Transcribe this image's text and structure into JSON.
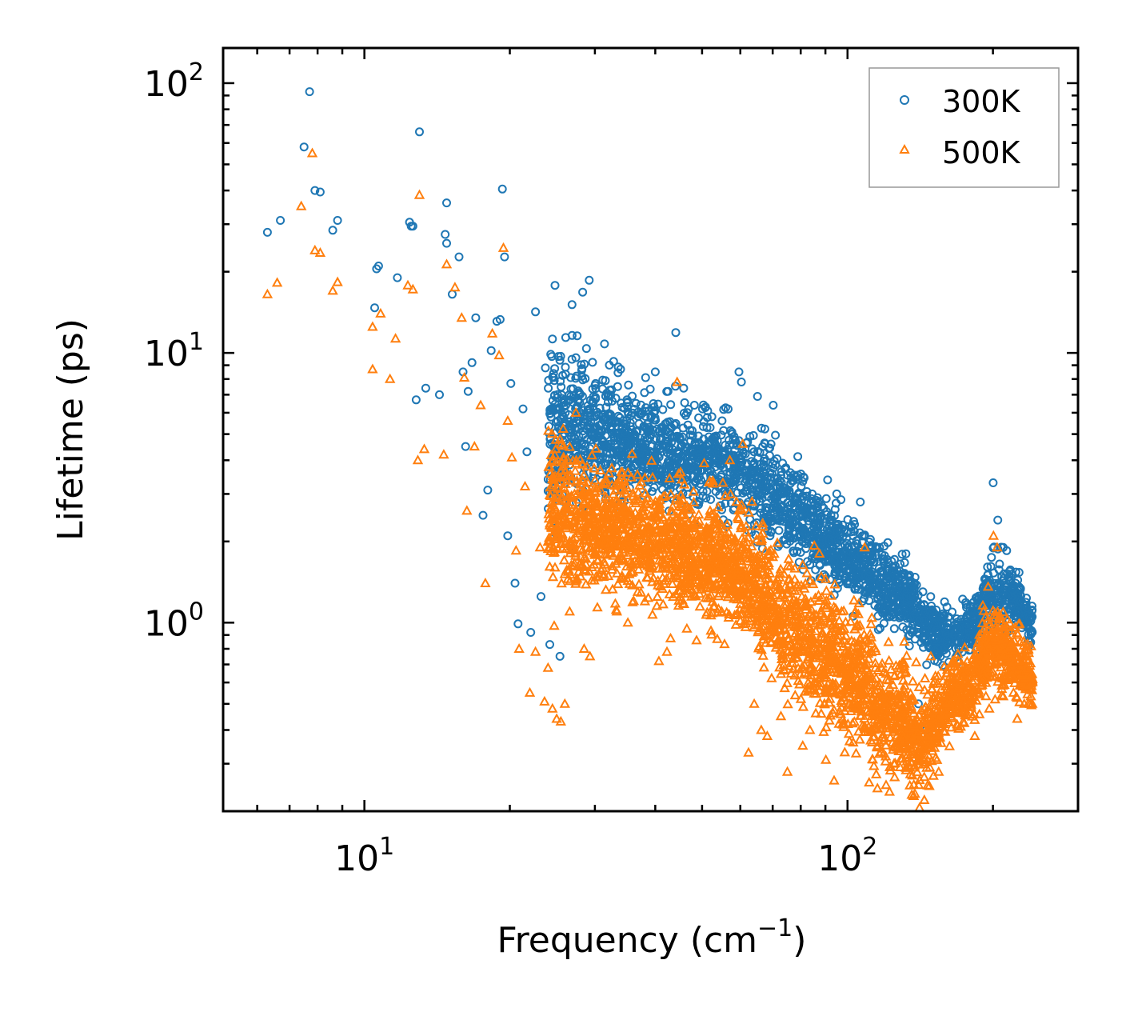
{
  "chart_data": {
    "type": "scatter",
    "title": "",
    "xlabel": "Frequency (cm",
    "xlabel_sup": "−1",
    "xlabel_suffix": ")",
    "ylabel": "Lifetime (ps)",
    "xscale": "log",
    "yscale": "log",
    "xlim": [
      5.1,
      300
    ],
    "ylim": [
      0.2,
      135
    ],
    "x_ticks": [
      {
        "value": 10,
        "base": "10",
        "exp": "1"
      },
      {
        "value": 100,
        "base": "10",
        "exp": "2"
      }
    ],
    "y_ticks": [
      {
        "value": 1,
        "base": "10",
        "exp": "0"
      },
      {
        "value": 10,
        "base": "10",
        "exp": "1"
      },
      {
        "value": 100,
        "base": "10",
        "exp": "2"
      }
    ],
    "legend_position": "top-right",
    "series": [
      {
        "name": "300K",
        "marker": "circle",
        "color": "#1f77b4",
        "points": [
          [
            6.3,
            28
          ],
          [
            6.7,
            31
          ],
          [
            7.5,
            58
          ],
          [
            7.7,
            93
          ],
          [
            7.9,
            40
          ],
          [
            8.1,
            39.5
          ],
          [
            8.6,
            28.5
          ],
          [
            8.8,
            31
          ],
          [
            10.5,
            14.7
          ],
          [
            10.6,
            20.5
          ],
          [
            10.7,
            21
          ],
          [
            11.7,
            19
          ],
          [
            12.4,
            30.5
          ],
          [
            12.5,
            29.5
          ],
          [
            12.6,
            29.5
          ],
          [
            12.8,
            6.7
          ],
          [
            13.0,
            66
          ],
          [
            13.4,
            7.4
          ],
          [
            14.3,
            7.0
          ],
          [
            14.7,
            27.5
          ],
          [
            14.8,
            25.5
          ],
          [
            14.8,
            36
          ],
          [
            15.2,
            16.5
          ],
          [
            15.7,
            22.7
          ],
          [
            16.0,
            8.5
          ],
          [
            16.2,
            4.5
          ],
          [
            16.4,
            7.2
          ],
          [
            16.7,
            9.2
          ],
          [
            17.0,
            13.5
          ],
          [
            17.6,
            2.5
          ],
          [
            18.0,
            3.1
          ],
          [
            18.3,
            10.2
          ],
          [
            18.8,
            13.1
          ],
          [
            19.1,
            13.3
          ],
          [
            19.3,
            40.5
          ],
          [
            19.5,
            22.7
          ],
          [
            19.8,
            2.1
          ],
          [
            20.1,
            7.7
          ],
          [
            20.5,
            1.4
          ],
          [
            20.8,
            0.99
          ],
          [
            21.3,
            6.2
          ],
          [
            21.7,
            4.3
          ],
          [
            22.1,
            0.92
          ],
          [
            22.6,
            14.2
          ],
          [
            23.2,
            1.25
          ],
          [
            23.7,
            8.8
          ],
          [
            24.2,
            0.83
          ],
          [
            24.8,
            17.8
          ],
          [
            25.4,
            0.75
          ],
          [
            26.1,
            11.4
          ],
          [
            26.9,
            15.1
          ],
          [
            27.4,
            9.6
          ],
          [
            28.3,
            16.8
          ],
          [
            29.2,
            18.6
          ],
          [
            30.1,
            7.7
          ],
          [
            31.4,
            10.8
          ],
          [
            32.8,
            9.3
          ],
          [
            33.9,
            8.7
          ],
          [
            35.2,
            7.6
          ],
          [
            36.5,
            6.5
          ],
          [
            38.2,
            8.1
          ],
          [
            40.0,
            8.5
          ],
          [
            42.5,
            7.2
          ],
          [
            44.1,
            11.9
          ],
          [
            45.8,
            7.4
          ],
          [
            48.2,
            6.4
          ],
          [
            50.1,
            6.2
          ],
          [
            52.4,
            5.8
          ],
          [
            55.0,
            5.6
          ],
          [
            57.7,
            5.0
          ],
          [
            59.6,
            8.5
          ],
          [
            60.3,
            7.8
          ],
          [
            62.8,
            4.9
          ],
          [
            65.1,
            6.9
          ],
          [
            67.5,
            4.6
          ],
          [
            70.2,
            6.4
          ],
          [
            73.4,
            3.9
          ],
          [
            76.1,
            3.6
          ],
          [
            80.2,
            3.2
          ],
          [
            84.5,
            3.0
          ],
          [
            88.6,
            2.7
          ],
          [
            92.4,
            2.5
          ],
          [
            95.0,
            3.0
          ],
          [
            98.4,
            2.2
          ],
          [
            102.7,
            2.1
          ],
          [
            106.3,
            2.8
          ],
          [
            110.8,
            1.9
          ],
          [
            115.2,
            1.3
          ],
          [
            120.4,
            1.45
          ],
          [
            125.0,
            0.95
          ],
          [
            128.5,
            1.65
          ],
          [
            132.1,
            1.8
          ],
          [
            136.7,
            1.1
          ],
          [
            140.2,
            0.5
          ],
          [
            145.6,
            0.4
          ],
          [
            150.3,
            1.05
          ],
          [
            160.4,
            0.85
          ],
          [
            168.9,
            0.95
          ],
          [
            176.3,
            1.05
          ],
          [
            185.5,
            1.15
          ],
          [
            195.0,
            1.5
          ],
          [
            200.2,
            3.3
          ],
          [
            204.7,
            2.4
          ],
          [
            210.1,
            1.9
          ],
          [
            216.4,
            1.55
          ],
          [
            222.8,
            1.4
          ],
          [
            228.3,
            1.2
          ],
          [
            234.9,
            0.98
          ],
          [
            240.0,
            0.92
          ]
        ]
      },
      {
        "name": "500K",
        "marker": "triangle",
        "color": "#ff7f0e",
        "points": [
          [
            6.3,
            16.5
          ],
          [
            6.6,
            18.2
          ],
          [
            7.4,
            35
          ],
          [
            7.8,
            55
          ],
          [
            7.9,
            24
          ],
          [
            8.1,
            23.5
          ],
          [
            8.6,
            17
          ],
          [
            8.8,
            18.3
          ],
          [
            10.4,
            12.5
          ],
          [
            10.4,
            8.7
          ],
          [
            10.8,
            14
          ],
          [
            11.3,
            8
          ],
          [
            11.6,
            11.3
          ],
          [
            12.3,
            17.8
          ],
          [
            12.6,
            17.2
          ],
          [
            12.9,
            4.0
          ],
          [
            13.0,
            38.5
          ],
          [
            13.3,
            4.4
          ],
          [
            14.6,
            4.2
          ],
          [
            14.8,
            21.3
          ],
          [
            15.4,
            17.5
          ],
          [
            15.9,
            13.5
          ],
          [
            16.1,
            8.1
          ],
          [
            16.3,
            2.6
          ],
          [
            16.9,
            4.5
          ],
          [
            17.4,
            6.4
          ],
          [
            17.8,
            1.4
          ],
          [
            18.4,
            11.8
          ],
          [
            19.0,
            9.8
          ],
          [
            19.4,
            24.5
          ],
          [
            19.8,
            5.6
          ],
          [
            20.2,
            4.1
          ],
          [
            20.6,
            1.85
          ],
          [
            20.9,
            0.8
          ],
          [
            21.5,
            3.2
          ],
          [
            22.0,
            0.55
          ],
          [
            22.6,
            0.78
          ],
          [
            23.1,
            1.9
          ],
          [
            23.6,
            0.51
          ],
          [
            24.0,
            0.68
          ],
          [
            24.5,
            0.48
          ],
          [
            25.0,
            0.44
          ],
          [
            25.5,
            0.43
          ],
          [
            26.0,
            0.5
          ],
          [
            26.6,
            1.1
          ],
          [
            27.4,
            6.0
          ],
          [
            28.5,
            0.8
          ],
          [
            29.3,
            0.75
          ],
          [
            30.3,
            2.6
          ],
          [
            31.6,
            3.4
          ],
          [
            33.3,
            1.1
          ],
          [
            35.1,
            1.0
          ],
          [
            36.8,
            1.3
          ],
          [
            38.9,
            2.5
          ],
          [
            40.7,
            0.72
          ],
          [
            42.3,
            0.78
          ],
          [
            44.4,
            7.8
          ],
          [
            46.5,
            0.95
          ],
          [
            48.7,
            0.86
          ],
          [
            50.5,
            3.9
          ],
          [
            52.8,
            1.15
          ],
          [
            55.2,
            3.3
          ],
          [
            57.1,
            4.0
          ],
          [
            58.8,
            1.3
          ],
          [
            60.7,
            4.6
          ],
          [
            62.4,
            0.33
          ],
          [
            64.1,
            0.5
          ],
          [
            66.3,
            0.4
          ],
          [
            68.2,
            0.38
          ],
          [
            70.5,
            1.8
          ],
          [
            72.8,
            0.45
          ],
          [
            75.1,
            0.28
          ],
          [
            78.4,
            1.2
          ],
          [
            80.8,
            0.35
          ],
          [
            83.6,
            0.4
          ],
          [
            86.5,
            0.6
          ],
          [
            90.2,
            0.31
          ],
          [
            93.8,
            0.26
          ],
          [
            97.5,
            0.42
          ],
          [
            101.1,
            0.5
          ],
          [
            104.7,
            0.78
          ],
          [
            108.5,
            1.9
          ],
          [
            112.3,
            0.45
          ],
          [
            116.4,
            0.36
          ],
          [
            120.2,
            0.25
          ],
          [
            124.8,
            0.3
          ],
          [
            128.1,
            0.5
          ],
          [
            131.6,
            0.65
          ],
          [
            135.8,
            0.23
          ],
          [
            140.4,
            0.25
          ],
          [
            144.2,
            0.22
          ],
          [
            148.7,
            0.75
          ],
          [
            160.8,
            0.5
          ],
          [
            168.5,
            0.42
          ],
          [
            175.6,
            0.55
          ],
          [
            183.4,
            0.38
          ],
          [
            190.1,
            0.6
          ],
          [
            196.5,
            0.48
          ],
          [
            200.5,
            2.1
          ],
          [
            204.1,
            1.9
          ],
          [
            208.7,
            0.8
          ],
          [
            214.3,
            0.62
          ],
          [
            220.6,
            0.55
          ],
          [
            226.5,
            0.72
          ],
          [
            232.1,
            0.5
          ],
          [
            238.4,
            0.62
          ],
          [
            241.2,
            0.5
          ]
        ]
      }
    ]
  },
  "colors": {
    "series_300K": "#1f77b4",
    "series_500K": "#ff7f0e"
  }
}
